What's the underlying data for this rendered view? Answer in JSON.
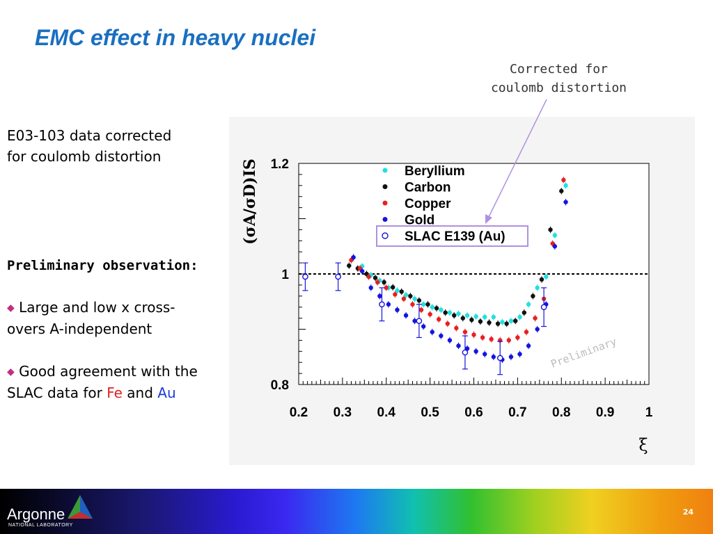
{
  "title": "EMC effect in heavy nuclei",
  "callout_text": "Corrected for\ncoulomb distortion",
  "left": {
    "intro_line1": "E03-103 data corrected",
    "intro_line2": "for coulomb distortion",
    "obs_heading": "Preliminary observation:",
    "bullet1_line1": "Large and low x cross-",
    "bullet1_line2": "overs A-independent",
    "bullet2_line1": "Good agreement with the",
    "bullet2_pre": "SLAC data for ",
    "bullet2_fe": "Fe",
    "bullet2_and": " and ",
    "bullet2_au": "Au"
  },
  "footer": {
    "logo": "Argonne",
    "logo_sub": "NATIONAL LABORATORY",
    "page_number": "24"
  },
  "chart_data": {
    "type": "scatter",
    "title": "",
    "ylabel": "(σA/σD)IS",
    "xlabel": "ξ",
    "xlim": [
      0.2,
      1.0
    ],
    "ylim": [
      0.8,
      1.2
    ],
    "x_ticks": [
      "0.2",
      "0.3",
      "0.4",
      "0.5",
      "0.6",
      "0.7",
      "0.8",
      "0.9",
      "1"
    ],
    "y_ticks": [
      "0.8",
      "1",
      "1.2"
    ],
    "reference_line": 1.0,
    "watermark": "Preliminary",
    "legend_position": "top-center",
    "series": [
      {
        "name": "Beryllium",
        "color": "#22e0e0",
        "marker": "filled",
        "x": [
          0.325,
          0.345,
          0.365,
          0.385,
          0.405,
          0.425,
          0.445,
          0.465,
          0.485,
          0.505,
          0.525,
          0.545,
          0.565,
          0.585,
          0.605,
          0.625,
          0.645,
          0.665,
          0.685,
          0.705,
          0.725,
          0.745,
          0.765,
          0.785,
          0.81
        ],
        "y": [
          1.03,
          1.014,
          0.998,
          0.988,
          0.975,
          0.97,
          0.962,
          0.955,
          0.945,
          0.94,
          0.935,
          0.93,
          0.928,
          0.925,
          0.923,
          0.922,
          0.922,
          0.913,
          0.915,
          0.922,
          0.945,
          0.975,
          0.995,
          1.07,
          1.16
        ]
      },
      {
        "name": "Carbon",
        "color": "#111111",
        "marker": "filled",
        "x": [
          0.315,
          0.335,
          0.355,
          0.375,
          0.395,
          0.415,
          0.435,
          0.455,
          0.475,
          0.495,
          0.515,
          0.535,
          0.555,
          0.575,
          0.595,
          0.615,
          0.635,
          0.655,
          0.675,
          0.695,
          0.715,
          0.735,
          0.755,
          0.775,
          0.8
        ],
        "y": [
          1.015,
          1.01,
          1.0,
          0.993,
          0.985,
          0.976,
          0.968,
          0.96,
          0.952,
          0.945,
          0.938,
          0.93,
          0.925,
          0.92,
          0.917,
          0.914,
          0.912,
          0.91,
          0.91,
          0.915,
          0.93,
          0.96,
          0.99,
          1.08,
          1.15
        ]
      },
      {
        "name": "Copper",
        "color": "#e82020",
        "marker": "filled",
        "x": [
          0.32,
          0.34,
          0.36,
          0.38,
          0.4,
          0.42,
          0.44,
          0.46,
          0.48,
          0.5,
          0.52,
          0.54,
          0.56,
          0.58,
          0.6,
          0.62,
          0.64,
          0.66,
          0.68,
          0.7,
          0.72,
          0.74,
          0.76,
          0.78,
          0.805
        ],
        "y": [
          1.025,
          1.01,
          0.995,
          0.985,
          0.975,
          0.963,
          0.955,
          0.945,
          0.935,
          0.927,
          0.918,
          0.91,
          0.902,
          0.895,
          0.89,
          0.885,
          0.882,
          0.88,
          0.88,
          0.885,
          0.895,
          0.92,
          0.955,
          1.055,
          1.17
        ]
      },
      {
        "name": "Gold",
        "color": "#1414e0",
        "marker": "filled",
        "x": [
          0.325,
          0.345,
          0.365,
          0.385,
          0.405,
          0.425,
          0.445,
          0.465,
          0.485,
          0.505,
          0.525,
          0.545,
          0.565,
          0.585,
          0.605,
          0.625,
          0.645,
          0.665,
          0.685,
          0.705,
          0.725,
          0.745,
          0.765,
          0.785,
          0.81
        ],
        "y": [
          1.03,
          1.005,
          0.975,
          0.96,
          0.945,
          0.935,
          0.925,
          0.915,
          0.905,
          0.895,
          0.888,
          0.88,
          0.87,
          0.865,
          0.86,
          0.855,
          0.85,
          0.845,
          0.85,
          0.855,
          0.87,
          0.9,
          0.945,
          1.05,
          1.13
        ]
      },
      {
        "name": "SLAC E139 (Au)",
        "color": "#1414e0",
        "marker": "open",
        "x": [
          0.215,
          0.29,
          0.39,
          0.475,
          0.58,
          0.66,
          0.76
        ],
        "y": [
          0.995,
          0.995,
          0.945,
          0.915,
          0.858,
          0.848,
          0.94
        ],
        "err": [
          0.025,
          0.025,
          0.03,
          0.03,
          0.03,
          0.03,
          0.035
        ]
      }
    ]
  }
}
